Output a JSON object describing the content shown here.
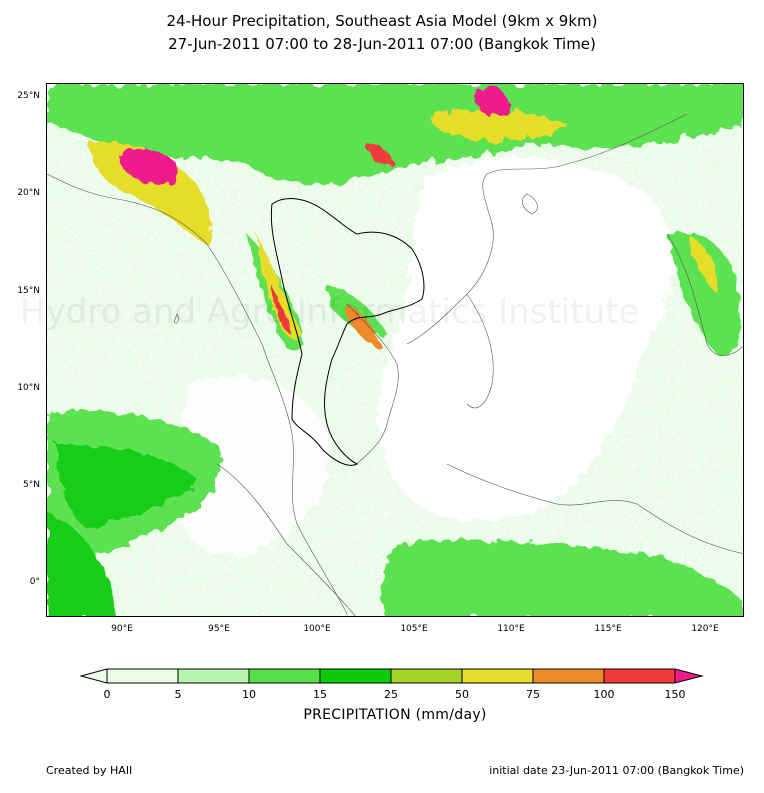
{
  "title_line1": "24-Hour Precipitation, Southeast Asia Model (9km x 9km)",
  "title_line2": "27-Jun-2011 07:00 to 28-Jun-2011 07:00 (Bangkok Time)",
  "watermark": "Hydro and Agro Informatics Institute",
  "lat_labels": [
    "25°N",
    "20°N",
    "15°N",
    "10°N",
    "5°N",
    "0°"
  ],
  "lon_labels": [
    "90°E",
    "95°E",
    "100°E",
    "105°E",
    "110°E",
    "115°E",
    "120°E"
  ],
  "colorbar": {
    "ticks": [
      "0",
      "5",
      "10",
      "15",
      "25",
      "50",
      "75",
      "100",
      "150"
    ],
    "colors": [
      "#eaffea",
      "#b6f5b2",
      "#55e04a",
      "#0ccb0c",
      "#a4d628",
      "#e6dc2c",
      "#ef8a2a",
      "#f23a3a",
      "#ee1c8a"
    ],
    "label": "PRECIPITATION (mm/day)"
  },
  "footer": {
    "left": "Created by HAII",
    "right": "initial date 23-Jun-2011 07:00 (Bangkok Time)"
  }
}
